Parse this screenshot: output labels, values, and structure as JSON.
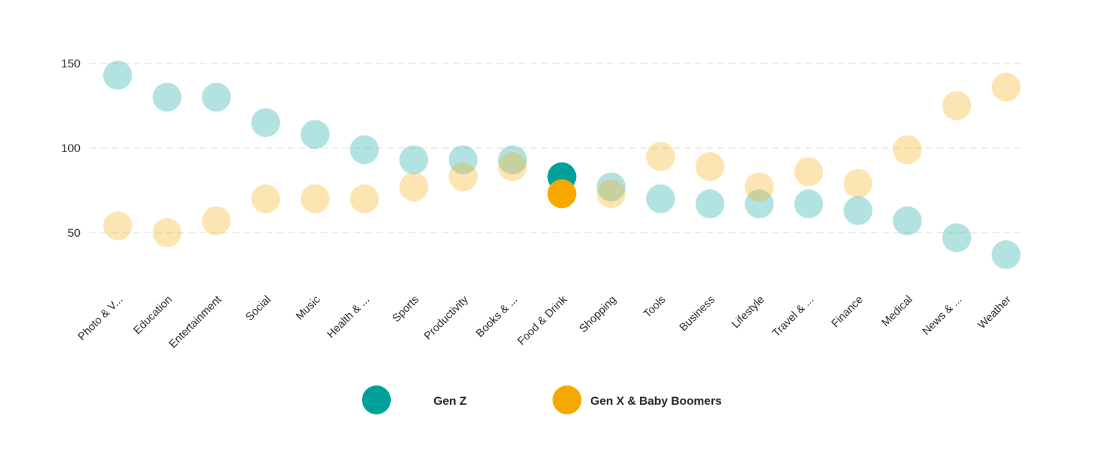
{
  "chart_data": {
    "type": "scatter",
    "title": "",
    "xlabel": "",
    "ylabel": "",
    "ylim": [
      20,
      160
    ],
    "yticks": [
      50,
      100,
      150
    ],
    "grid": true,
    "legend_placement": "bottom",
    "categories": [
      "Photo & V...",
      "Education",
      "Entertainment",
      "Social",
      "Music",
      "Health & ...",
      "Sports",
      "Productivity",
      "Books & ...",
      "Food & Drink",
      "Shopping",
      "Tools",
      "Business",
      "Lifestyle",
      "Travel & ...",
      "Finance",
      "Medical",
      "News & ...",
      "Weather"
    ],
    "highlighted_category": "Food & Drink",
    "series": [
      {
        "name": "Gen Z",
        "color": "#00A19A",
        "values": [
          143,
          130,
          130,
          115,
          108,
          99,
          93,
          93,
          93,
          83,
          77,
          70,
          67,
          67,
          67,
          63,
          57,
          47,
          37
        ]
      },
      {
        "name": "Gen X & Baby Boomers",
        "color": "#F5A800",
        "values": [
          54,
          50,
          57,
          70,
          70,
          70,
          77,
          83,
          89,
          73,
          73,
          95,
          89,
          77,
          86,
          79,
          99,
          125,
          136
        ]
      }
    ]
  }
}
